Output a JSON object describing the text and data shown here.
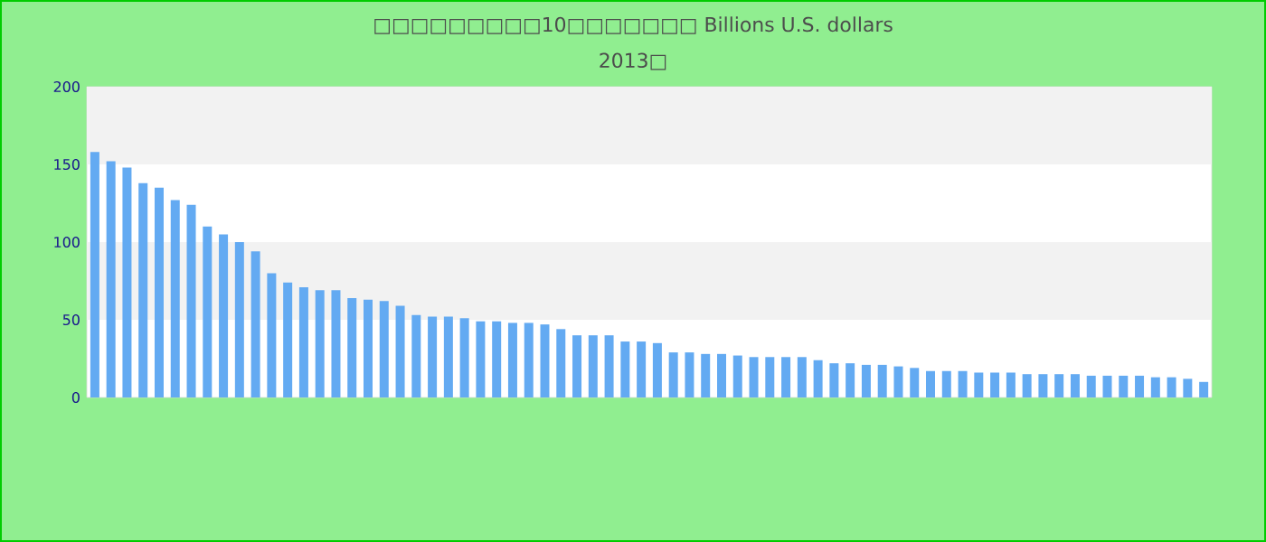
{
  "chart_data": {
    "type": "bar",
    "title": "□□□□□□□□□10□□□□□□□ Billions U.S. dollars",
    "subtitle": "2013□",
    "categories": [
      null,
      null,
      null,
      null,
      null,
      null,
      null,
      null,
      null,
      null,
      null,
      null,
      null,
      null,
      null,
      null,
      null,
      null,
      null,
      null,
      null,
      null,
      null,
      null,
      null,
      null,
      null,
      null,
      null,
      null,
      null,
      null,
      null,
      null,
      null,
      null,
      null,
      null,
      null,
      null,
      null,
      null,
      null,
      null,
      null,
      null,
      null,
      null,
      null,
      null,
      null,
      null,
      null,
      null,
      null,
      null,
      null,
      null,
      null,
      null,
      null,
      null,
      null,
      null,
      null,
      null,
      null,
      null,
      null,
      null
    ],
    "values": [
      158,
      152,
      148,
      138,
      135,
      127,
      124,
      110,
      105,
      100,
      94,
      80,
      74,
      71,
      69,
      69,
      64,
      63,
      62,
      59,
      53,
      52,
      52,
      51,
      49,
      49,
      48,
      48,
      47,
      44,
      40,
      40,
      40,
      36,
      36,
      35,
      29,
      29,
      28,
      28,
      27,
      26,
      26,
      26,
      26,
      24,
      22,
      22,
      21,
      21,
      20,
      19,
      17,
      17,
      17,
      16,
      16,
      16,
      15,
      15,
      15,
      15,
      14,
      14,
      14,
      14,
      13,
      13,
      12,
      10
    ],
    "color": "#63aaf2",
    "ylim": [
      0,
      200
    ],
    "yticks": [
      0,
      50,
      100,
      150,
      200
    ]
  }
}
